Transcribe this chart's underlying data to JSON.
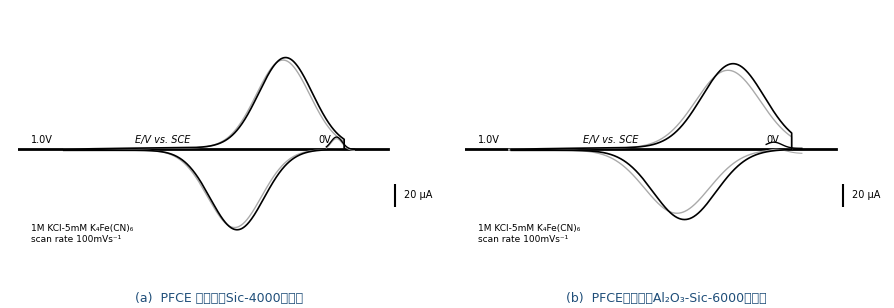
{
  "fig_width": 8.95,
  "fig_height": 3.08,
  "dpi": 100,
  "background_color": "#ffffff",
  "panel_a_caption": "(a)  PFCE 石墨电极Sic-4000目抛光",
  "panel_b_caption": "(b)  PFCE石墨电极Al₂O₃-Sic-6000目抛光",
  "label_ev": "E/V vs. SCE",
  "label_1v": "1.0V",
  "label_0v": "0V",
  "label_scale": "20 μA",
  "annotation_text": "1M KCl-5mM K₄Fe(CN)₆\nscan rate 100mVs⁻¹",
  "line_color_black": "#000000",
  "line_color_gray": "#aaaaaa",
  "caption_color": "#1F4E79",
  "caption_fontsize": 9,
  "label_fontsize": 7,
  "annot_fontsize": 6.5,
  "scale_fontsize": 7
}
